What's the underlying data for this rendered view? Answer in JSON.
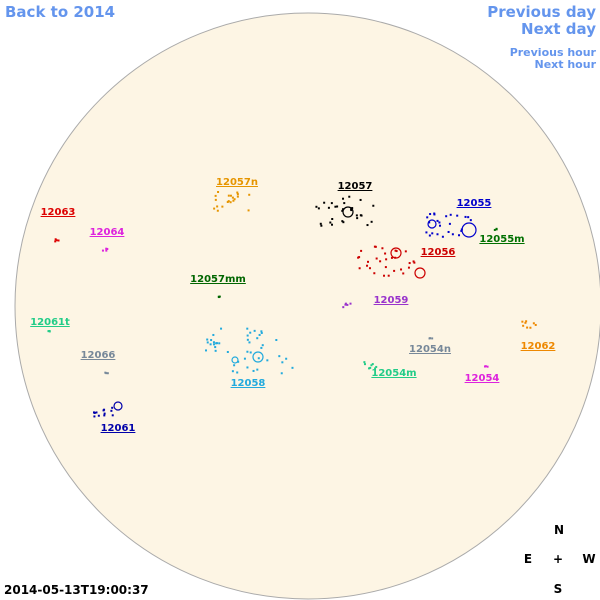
{
  "navigation": {
    "back": "Back to 2014",
    "previous_day": "Previous day",
    "next_day": "Next day",
    "previous_hour": "Previous hour",
    "next_hour": "Next hour"
  },
  "regions": [
    {
      "label": "12057n",
      "color": "#e69500"
    },
    {
      "label": "12057",
      "color": "#000000"
    },
    {
      "label": "12055",
      "color": "#0000cc"
    },
    {
      "label": "12063",
      "color": "#dd0000"
    },
    {
      "label": "12064",
      "color": "#dd22dd"
    },
    {
      "label": "12055m",
      "color": "#007000"
    },
    {
      "label": "12056",
      "color": "#cc0000"
    },
    {
      "label": "12057mm",
      "color": "#006600"
    },
    {
      "label": "12059",
      "color": "#9933cc"
    },
    {
      "label": "12061t",
      "color": "#22cc88"
    },
    {
      "label": "12062",
      "color": "#ee8800"
    },
    {
      "label": "12054n",
      "color": "#778899"
    },
    {
      "label": "12066",
      "color": "#778899"
    },
    {
      "label": "12054m",
      "color": "#22cc88"
    },
    {
      "label": "12054",
      "color": "#dd22dd"
    },
    {
      "label": "12058",
      "color": "#22aadd"
    },
    {
      "label": "12061",
      "color": "#0000aa"
    }
  ],
  "compass": {
    "north": "N",
    "east": "E",
    "center": "+",
    "west": "W",
    "south": "S"
  },
  "timestamp": "2014-05-13T19:00:37"
}
